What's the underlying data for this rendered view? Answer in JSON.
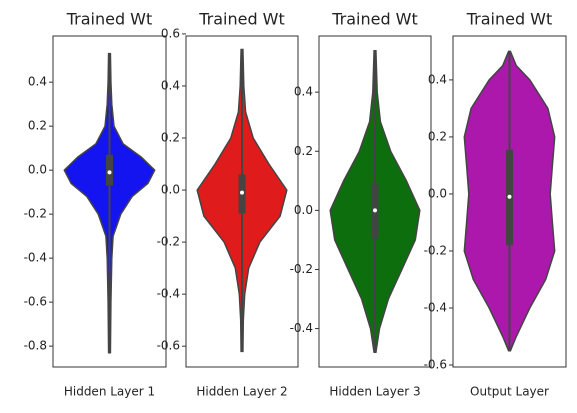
{
  "chart_data": [
    {
      "type": "violin",
      "title": "Trained Wt",
      "xlabel": "Hidden Layer 1",
      "color": "#1414f0",
      "ylim": [
        -0.895,
        0.61
      ],
      "yticks": [
        -0.8,
        -0.6,
        -0.4,
        -0.2,
        {
          "value": 0,
          "label": "0.0"
        },
        0.2,
        0.4
      ],
      "min": -0.83,
      "q1": -0.07,
      "median": -0.01,
      "q3": 0.07,
      "max": 0.53,
      "kde_y": [
        0.53,
        0.4,
        0.3,
        0.2,
        0.12,
        0.06,
        0.0,
        -0.06,
        -0.12,
        -0.2,
        -0.3,
        -0.4,
        -0.6,
        -0.83
      ],
      "kde_w": [
        0.02,
        0.03,
        0.05,
        0.1,
        0.3,
        0.7,
        1.0,
        0.85,
        0.5,
        0.25,
        0.08,
        0.05,
        0.03,
        0.02
      ]
    },
    {
      "type": "violin",
      "title": "Trained Wt",
      "xlabel": "Hidden Layer 2",
      "color": "#e01b1b",
      "ylim": [
        -0.68,
        0.592
      ],
      "yticks": [
        -0.6,
        -0.4,
        -0.2,
        {
          "value": 0,
          "label": "0.0"
        },
        0.2,
        0.4,
        0.6
      ],
      "min": -0.62,
      "q1": -0.09,
      "median": -0.01,
      "q3": 0.06,
      "max": 0.54,
      "kde_y": [
        0.54,
        0.4,
        0.3,
        0.2,
        0.1,
        0.0,
        -0.1,
        -0.2,
        -0.3,
        -0.4,
        -0.5,
        -0.62
      ],
      "kde_w": [
        0.02,
        0.04,
        0.08,
        0.25,
        0.6,
        1.0,
        0.85,
        0.4,
        0.15,
        0.06,
        0.03,
        0.02
      ]
    },
    {
      "type": "violin",
      "title": "Trained Wt",
      "xlabel": "Hidden Layer 3",
      "color": "#0d6e0d",
      "ylim": [
        -0.53,
        0.59
      ],
      "yticks": [
        -0.4,
        -0.2,
        {
          "value": 0,
          "label": "0.0"
        },
        0.2,
        0.4
      ],
      "min": -0.48,
      "q1": -0.095,
      "median": 0,
      "q3": 0.09,
      "max": 0.54,
      "kde_y": [
        0.54,
        0.4,
        0.3,
        0.2,
        0.1,
        0.0,
        -0.1,
        -0.2,
        -0.3,
        -0.4,
        -0.48
      ],
      "kde_w": [
        0.02,
        0.05,
        0.12,
        0.35,
        0.7,
        1.0,
        0.9,
        0.6,
        0.3,
        0.1,
        0.02
      ]
    },
    {
      "type": "violin",
      "title": "Trained Wt",
      "xlabel": "Output Layer",
      "color": "#ac18ac",
      "ylim": [
        -0.607,
        0.554
      ],
      "yticks": [
        -0.6,
        -0.4,
        -0.2,
        {
          "value": 0,
          "label": "0.0"
        },
        0.2,
        0.4
      ],
      "min": -0.55,
      "q1": -0.18,
      "median": -0.01,
      "q3": 0.155,
      "max": 0.5,
      "kde_y": [
        0.5,
        0.45,
        0.4,
        0.3,
        0.2,
        0.1,
        0.0,
        -0.1,
        -0.2,
        -0.3,
        -0.4,
        -0.5,
        -0.55
      ],
      "kde_w": [
        0.02,
        0.15,
        0.45,
        0.85,
        1.0,
        0.95,
        0.9,
        0.95,
        1.0,
        0.8,
        0.45,
        0.15,
        0.02
      ]
    }
  ]
}
